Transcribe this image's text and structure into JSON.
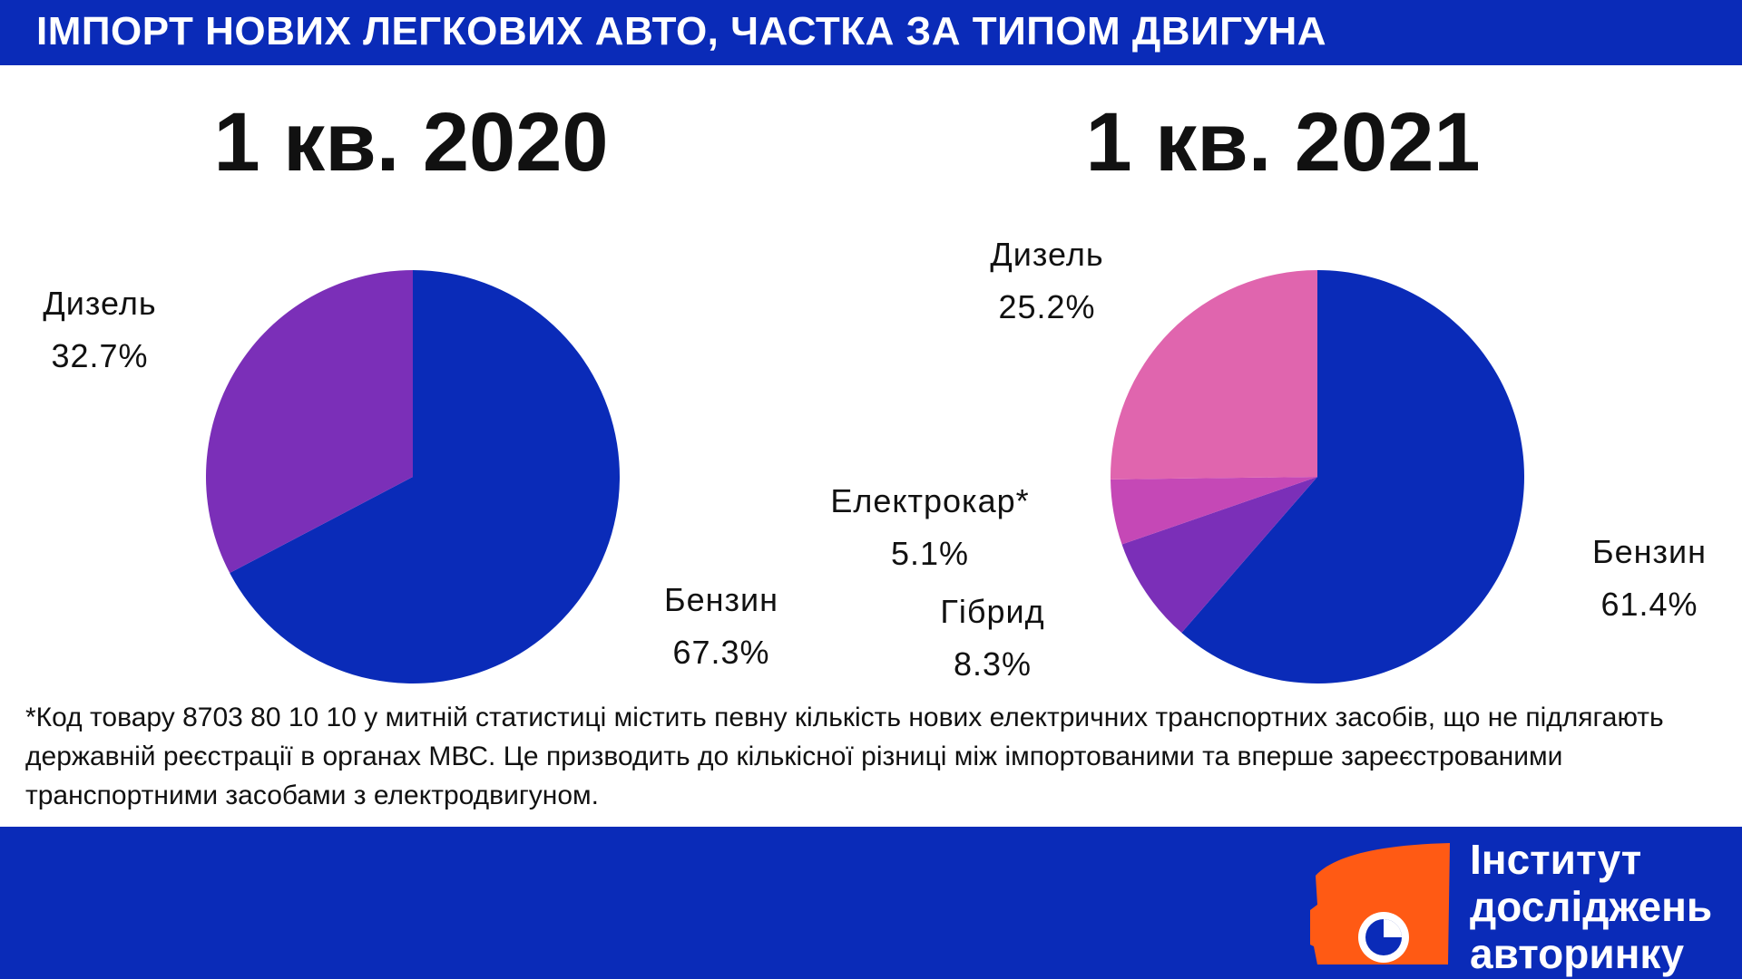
{
  "header": {
    "title": "ІМПОРТ НОВИХ ЛЕГКОВИХ АВТО, ЧАСТКА ЗА ТИПОМ ДВИГУНА"
  },
  "colors": {
    "header_bg": "#0a2bb8",
    "benzyn": "#0a2bb8",
    "dyzel_2020": "#7b2fb8",
    "dyzel_2021": "#e065ae",
    "elektrokar": "#c548b6",
    "hibryd": "#7b2fb8",
    "logo_accent": "#ff5a14"
  },
  "chart_data": [
    {
      "type": "pie",
      "title": "1 кв. 2020",
      "slices": [
        {
          "name": "Бензин",
          "value": 67.3,
          "label": "67.3%",
          "color": "#0a2bb8"
        },
        {
          "name": "Дизель",
          "value": 32.7,
          "label": "32.7%",
          "color": "#7b2fb8"
        }
      ]
    },
    {
      "type": "pie",
      "title": "1 кв. 2021",
      "slices": [
        {
          "name": "Бензин",
          "value": 61.4,
          "label": "61.4%",
          "color": "#0a2bb8"
        },
        {
          "name": "Гібрид",
          "value": 8.3,
          "label": "8.3%",
          "color": "#7b2fb8"
        },
        {
          "name": "Електрокар*",
          "value": 5.1,
          "label": "5.1%",
          "color": "#c548b6"
        },
        {
          "name": "Дизель",
          "value": 25.2,
          "label": "25.2%",
          "color": "#e065ae"
        }
      ]
    }
  ],
  "footnote": "*Код товару 8703 80 10 10 у митній статистиці містить певну кількість нових електричних транспортних засобів, що не підлягають державній реєстрації в органах МВС. Це призводить до кількісної різниці між імпортованими та вперше зареєстрованими транспортними засобами з електродвигуном.",
  "logo": {
    "line1": "Інститут",
    "line2": "досліджень",
    "line3": "авторинку"
  }
}
